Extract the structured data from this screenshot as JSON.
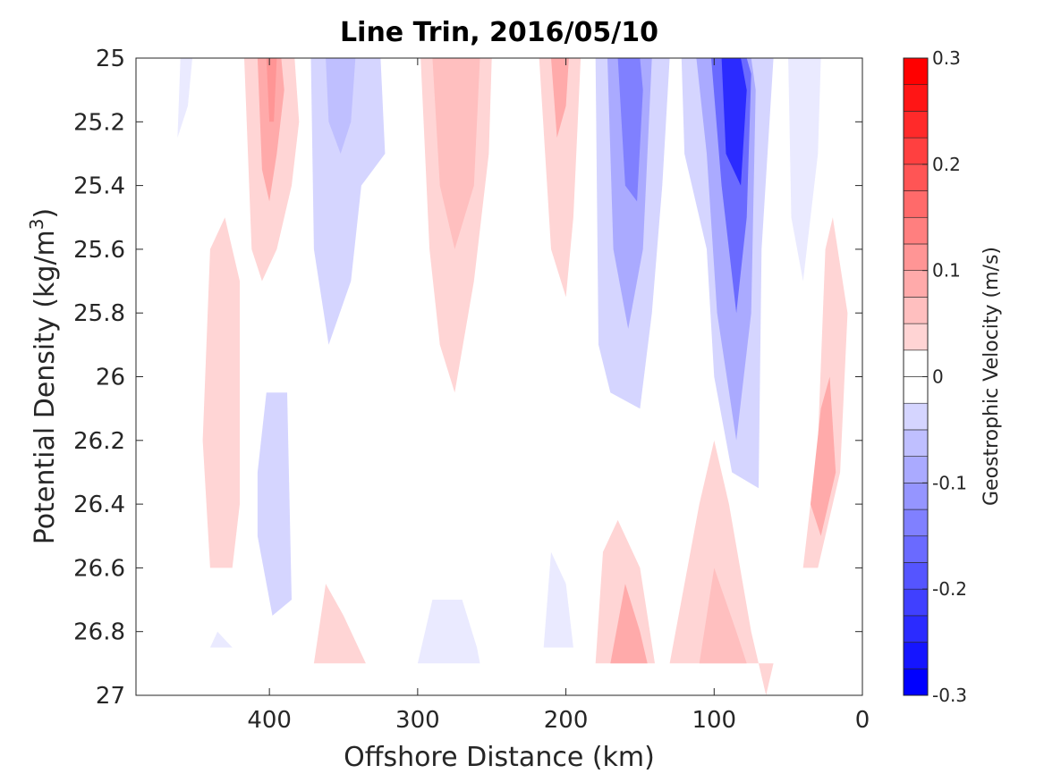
{
  "chart_data": {
    "type": "contour",
    "title": "Line Trin, 2016/05/10",
    "xlabel": "Offshore Distance (km)",
    "ylabel_main": "Potential Density (kg/m",
    "ylabel_sup": "3",
    "ylabel_close": ")",
    "colorbar_label": "Geostrophic Velocity (m/s)",
    "xlim": [
      490,
      0
    ],
    "x_reversed": true,
    "ylim": [
      25,
      27
    ],
    "y_reversed": true,
    "x_ticks": [
      "400",
      "300",
      "200",
      "100",
      "0"
    ],
    "x_tick_values": [
      400,
      300,
      200,
      100,
      0
    ],
    "y_ticks": [
      "25",
      "25.2",
      "25.4",
      "25.6",
      "25.8",
      "26",
      "26.2",
      "26.4",
      "26.6",
      "26.8",
      "27"
    ],
    "y_tick_values": [
      25,
      25.2,
      25.4,
      25.6,
      25.8,
      26,
      26.2,
      26.4,
      26.6,
      26.8,
      27
    ],
    "colorbar": {
      "clim": [
        -0.3,
        0.3
      ],
      "level_step": 0.025,
      "tick_labels": [
        "0.3",
        "0.2",
        "0.1",
        "0",
        "-0.1",
        "-0.2",
        "-0.3"
      ],
      "tick_values": [
        0.3,
        0.2,
        0.1,
        0,
        -0.1,
        -0.2,
        -0.3
      ],
      "positive_color": "#ff0000",
      "negative_color": "#0000ff",
      "zero_color": "#ffffff"
    },
    "contour_regions": [
      {
        "name": "region-red-30-410",
        "value": 0.05,
        "points": [
          [
            417,
            25.0
          ],
          [
            412,
            25.6
          ],
          [
            405,
            25.7
          ],
          [
            395,
            25.6
          ],
          [
            385,
            25.4
          ],
          [
            380,
            25.2
          ],
          [
            383,
            25.0
          ]
        ]
      },
      {
        "name": "region-red-30-410-core",
        "value": 0.1,
        "points": [
          [
            408,
            25.0
          ],
          [
            405,
            25.35
          ],
          [
            400,
            25.45
          ],
          [
            395,
            25.3
          ],
          [
            390,
            25.1
          ],
          [
            392,
            25.0
          ]
        ]
      },
      {
        "name": "region-red-30-410-peak",
        "value": 0.125,
        "points": [
          [
            402,
            25.0
          ],
          [
            400,
            25.2
          ],
          [
            397,
            25.2
          ],
          [
            395,
            25.0
          ]
        ]
      },
      {
        "name": "region-blue-30-355",
        "value": -0.05,
        "points": [
          [
            372,
            25.0
          ],
          [
            370,
            25.6
          ],
          [
            360,
            25.9
          ],
          [
            345,
            25.7
          ],
          [
            338,
            25.4
          ],
          [
            322,
            25.3
          ],
          [
            325,
            25.0
          ]
        ]
      },
      {
        "name": "region-blue-30-355-core",
        "value": -0.075,
        "points": [
          [
            362,
            25.0
          ],
          [
            360,
            25.2
          ],
          [
            352,
            25.3
          ],
          [
            345,
            25.2
          ],
          [
            342,
            25.0
          ]
        ]
      },
      {
        "name": "region-blue-faint-top",
        "value": -0.025,
        "points": [
          [
            460,
            25.0
          ],
          [
            462,
            25.25
          ],
          [
            455,
            25.15
          ],
          [
            452,
            25.0
          ]
        ]
      },
      {
        "name": "region-red-30-280",
        "value": 0.05,
        "points": [
          [
            298,
            25.0
          ],
          [
            292,
            25.6
          ],
          [
            285,
            25.9
          ],
          [
            275,
            26.05
          ],
          [
            262,
            25.7
          ],
          [
            252,
            25.3
          ],
          [
            250,
            25.0
          ]
        ]
      },
      {
        "name": "region-red-30-280-core",
        "value": 0.075,
        "points": [
          [
            290,
            25.0
          ],
          [
            285,
            25.4
          ],
          [
            275,
            25.6
          ],
          [
            262,
            25.4
          ],
          [
            258,
            25.0
          ]
        ]
      },
      {
        "name": "region-red-30-210",
        "value": 0.05,
        "points": [
          [
            218,
            25.0
          ],
          [
            210,
            25.6
          ],
          [
            200,
            25.75
          ],
          [
            195,
            25.5
          ],
          [
            190,
            25.0
          ]
        ]
      },
      {
        "name": "region-red-30-210-core",
        "value": 0.1,
        "points": [
          [
            210,
            25.0
          ],
          [
            206,
            25.25
          ],
          [
            200,
            25.15
          ],
          [
            198,
            25.0
          ]
        ]
      },
      {
        "name": "region-blue-170",
        "value": -0.05,
        "points": [
          [
            180,
            25.0
          ],
          [
            178,
            25.9
          ],
          [
            170,
            26.05
          ],
          [
            150,
            26.1
          ],
          [
            142,
            25.8
          ],
          [
            135,
            25.4
          ],
          [
            130,
            25.0
          ]
        ]
      },
      {
        "name": "region-blue-170-mid",
        "value": -0.1,
        "points": [
          [
            172,
            25.0
          ],
          [
            168,
            25.6
          ],
          [
            158,
            25.85
          ],
          [
            148,
            25.6
          ],
          [
            142,
            25.0
          ]
        ]
      },
      {
        "name": "region-blue-170-core",
        "value": -0.15,
        "points": [
          [
            165,
            25.0
          ],
          [
            160,
            25.4
          ],
          [
            152,
            25.45
          ],
          [
            148,
            25.1
          ],
          [
            150,
            25.0
          ]
        ]
      },
      {
        "name": "region-blue-85",
        "value": -0.05,
        "points": [
          [
            122,
            25.0
          ],
          [
            120,
            25.3
          ],
          [
            105,
            25.6
          ],
          [
            100,
            26.0
          ],
          [
            88,
            26.3
          ],
          [
            70,
            26.35
          ],
          [
            68,
            25.6
          ],
          [
            60,
            25.0
          ]
        ]
      },
      {
        "name": "region-blue-85-mid",
        "value": -0.1,
        "points": [
          [
            112,
            25.0
          ],
          [
            105,
            25.3
          ],
          [
            98,
            25.8
          ],
          [
            85,
            26.2
          ],
          [
            75,
            25.8
          ],
          [
            72,
            25.1
          ],
          [
            75,
            25.0
          ]
        ]
      },
      {
        "name": "region-blue-85-strong",
        "value": -0.175,
        "points": [
          [
            102,
            25.0
          ],
          [
            95,
            25.4
          ],
          [
            85,
            25.8
          ],
          [
            78,
            25.5
          ],
          [
            75,
            25.05
          ],
          [
            78,
            25.0
          ]
        ]
      },
      {
        "name": "region-blue-85-core",
        "value": -0.25,
        "points": [
          [
            95,
            25.0
          ],
          [
            92,
            25.3
          ],
          [
            82,
            25.4
          ],
          [
            78,
            25.1
          ],
          [
            82,
            25.0
          ]
        ]
      },
      {
        "name": "region-blue-40",
        "value": -0.025,
        "points": [
          [
            50,
            25.0
          ],
          [
            48,
            25.5
          ],
          [
            40,
            25.7
          ],
          [
            30,
            25.3
          ],
          [
            28,
            25.0
          ]
        ]
      },
      {
        "name": "region-red-440",
        "value": 0.05,
        "points": [
          [
            445,
            26.2
          ],
          [
            440,
            25.6
          ],
          [
            430,
            25.5
          ],
          [
            420,
            25.7
          ],
          [
            420,
            26.4
          ],
          [
            425,
            26.6
          ],
          [
            440,
            26.6
          ]
        ]
      },
      {
        "name": "region-red-20",
        "value": 0.05,
        "points": [
          [
            40,
            26.6
          ],
          [
            30,
            26.2
          ],
          [
            25,
            25.6
          ],
          [
            20,
            25.5
          ],
          [
            10,
            25.8
          ],
          [
            15,
            26.3
          ],
          [
            30,
            26.6
          ]
        ]
      },
      {
        "name": "region-red-20-core",
        "value": 0.1,
        "points": [
          [
            35,
            26.4
          ],
          [
            28,
            26.1
          ],
          [
            22,
            26.0
          ],
          [
            18,
            26.3
          ],
          [
            28,
            26.5
          ]
        ]
      },
      {
        "name": "region-blue-395-deep",
        "value": -0.05,
        "points": [
          [
            408,
            26.3
          ],
          [
            402,
            26.05
          ],
          [
            388,
            26.05
          ],
          [
            385,
            26.7
          ],
          [
            398,
            26.75
          ],
          [
            408,
            26.5
          ]
        ]
      },
      {
        "name": "region-blue-430-small",
        "value": -0.025,
        "points": [
          [
            440,
            26.85
          ],
          [
            435,
            26.8
          ],
          [
            425,
            26.85
          ]
        ]
      },
      {
        "name": "region-red-355-deep",
        "value": 0.05,
        "points": [
          [
            370,
            26.9
          ],
          [
            362,
            26.65
          ],
          [
            350,
            26.75
          ],
          [
            335,
            26.9
          ]
        ]
      },
      {
        "name": "region-blue-280-deep",
        "value": -0.025,
        "points": [
          [
            300,
            26.9
          ],
          [
            290,
            26.7
          ],
          [
            270,
            26.7
          ],
          [
            260,
            26.85
          ],
          [
            258,
            26.9
          ]
        ]
      },
      {
        "name": "region-blue-205-deep",
        "value": -0.025,
        "points": [
          [
            215,
            26.85
          ],
          [
            210,
            26.55
          ],
          [
            200,
            26.65
          ],
          [
            195,
            26.85
          ]
        ]
      },
      {
        "name": "region-red-160-deep",
        "value": 0.05,
        "points": [
          [
            180,
            26.9
          ],
          [
            175,
            26.55
          ],
          [
            165,
            26.45
          ],
          [
            150,
            26.6
          ],
          [
            140,
            26.9
          ]
        ]
      },
      {
        "name": "region-red-160-deep-core",
        "value": 0.1,
        "points": [
          [
            170,
            26.9
          ],
          [
            160,
            26.65
          ],
          [
            150,
            26.8
          ],
          [
            145,
            26.9
          ]
        ]
      },
      {
        "name": "region-red-100-deep",
        "value": 0.05,
        "points": [
          [
            130,
            26.9
          ],
          [
            110,
            26.4
          ],
          [
            100,
            26.2
          ],
          [
            90,
            26.4
          ],
          [
            75,
            26.8
          ],
          [
            65,
            27.0
          ],
          [
            60,
            26.9
          ]
        ]
      },
      {
        "name": "region-red-100-deep-core",
        "value": 0.075,
        "points": [
          [
            110,
            26.9
          ],
          [
            100,
            26.6
          ],
          [
            85,
            26.8
          ],
          [
            78,
            26.9
          ]
        ]
      }
    ]
  }
}
